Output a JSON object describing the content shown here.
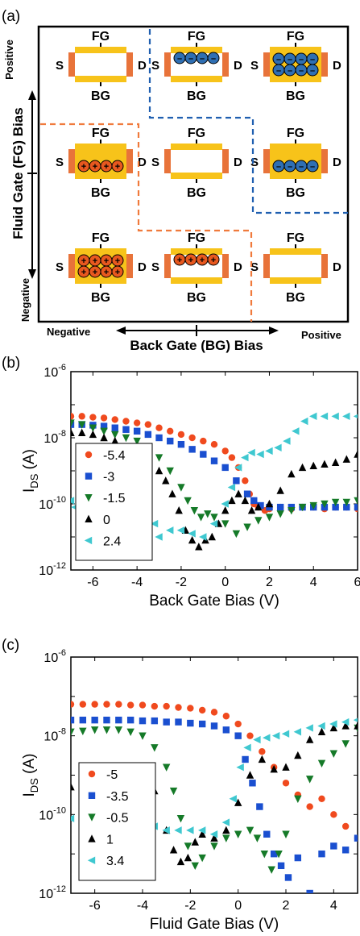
{
  "panel_a": {
    "letter": "(a)",
    "y_axis": {
      "title": "Fluid Gate (FG) Bias",
      "pos": "Positive",
      "neg": "Negative"
    },
    "x_axis": {
      "title": "Back Gate (BG) Bias",
      "neg": "Negative",
      "pos": "Positive"
    },
    "labels": {
      "fg": "FG",
      "bg": "BG",
      "s": "S",
      "d": "D"
    },
    "colors": {
      "gold": "#f7c31a",
      "contact": "#e8733a",
      "electron": "#2f6fb3",
      "hole": "#e8581f",
      "divider_blue": "#1f5fb0",
      "divider_orange": "#f07a3c"
    },
    "cells": [
      {
        "row": 0,
        "col": 0,
        "filled": false,
        "carrier": "none",
        "rows": 0
      },
      {
        "row": 0,
        "col": 1,
        "filled": false,
        "carrier": "electron",
        "rows": 1,
        "position": "top"
      },
      {
        "row": 0,
        "col": 2,
        "filled": true,
        "carrier": "electron",
        "rows": 2
      },
      {
        "row": 1,
        "col": 0,
        "filled": true,
        "carrier": "hole",
        "rows": 1,
        "position": "bottom"
      },
      {
        "row": 1,
        "col": 1,
        "filled": false,
        "carrier": "none",
        "rows": 0
      },
      {
        "row": 1,
        "col": 2,
        "filled": true,
        "carrier": "electron",
        "rows": 1,
        "position": "bottom"
      },
      {
        "row": 2,
        "col": 0,
        "filled": true,
        "carrier": "hole",
        "rows": 2
      },
      {
        "row": 2,
        "col": 1,
        "filled": false,
        "carrier": "hole",
        "rows": 1,
        "position": "top"
      },
      {
        "row": 2,
        "col": 2,
        "filled": false,
        "carrier": "none",
        "rows": 0
      }
    ]
  },
  "chart_data": [
    {
      "panel": "(b)",
      "type": "scatter",
      "xlabel": "Back Gate Bias (V)",
      "ylabel": "I_DS (A)",
      "xlim": [
        -7,
        6
      ],
      "ylim_log10": [
        -12,
        -6
      ],
      "xticks": [
        -6,
        -4,
        -2,
        0,
        2,
        4,
        6
      ],
      "ytick_labels": [
        "10-12",
        "10-10",
        "10-8",
        "10-6"
      ],
      "series": [
        {
          "name": "-5.4",
          "marker": "circle",
          "color": "#f04a1e",
          "x": [
            -7,
            -6.5,
            -6,
            -5.5,
            -5,
            -4.5,
            -4,
            -3.5,
            -3,
            -2.5,
            -2,
            -1.5,
            -1,
            -0.5,
            0,
            0.3,
            0.6,
            0.9,
            1.1,
            1.3,
            1.5,
            1.8,
            2,
            2.5,
            3,
            3.5,
            4,
            4.5,
            5,
            5.5,
            6
          ],
          "y_log10": [
            -7.35,
            -7.35,
            -7.38,
            -7.4,
            -7.45,
            -7.5,
            -7.55,
            -7.6,
            -7.7,
            -7.8,
            -7.9,
            -8.0,
            -8.1,
            -8.2,
            -8.4,
            -8.6,
            -8.9,
            -9.3,
            -9.7,
            -10.0,
            -10.1,
            -10.2,
            -10.15,
            -10.1,
            -10.15,
            -10.1,
            -10.1,
            -10.15,
            -10.1,
            -10.1,
            -10.15
          ]
        },
        {
          "name": "-3",
          "marker": "square",
          "color": "#1a4fd0",
          "x": [
            -7,
            -6.5,
            -6,
            -5.5,
            -5,
            -4.5,
            -4,
            -3.5,
            -3,
            -2.5,
            -2,
            -1.5,
            -1,
            -0.5,
            0,
            0.5,
            1,
            1.3,
            1.6,
            2,
            2.5,
            3,
            3.5,
            4,
            4.5,
            5,
            5.5,
            6
          ],
          "y_log10": [
            -7.6,
            -7.6,
            -7.62,
            -7.65,
            -7.7,
            -7.75,
            -7.8,
            -7.9,
            -8.0,
            -8.1,
            -8.2,
            -8.35,
            -8.5,
            -8.7,
            -8.9,
            -9.3,
            -9.7,
            -9.9,
            -10.05,
            -10.1,
            -10.1,
            -10.1,
            -10.1,
            -10.1,
            -10.1,
            -10.1,
            -10.1,
            -10.1
          ]
        },
        {
          "name": "-1.5",
          "marker": "triangle-down",
          "color": "#157a28",
          "x": [
            -7,
            -6.5,
            -6,
            -5.5,
            -5,
            -4.5,
            -4,
            -3.5,
            -3,
            -2.5,
            -2,
            -1.7,
            -1.4,
            -1.1,
            -0.8,
            -0.5,
            0,
            0.5,
            1,
            1.5,
            2,
            2.5,
            3,
            3.5,
            4,
            4.5,
            5,
            5.5,
            6
          ],
          "y_log10": [
            -7.55,
            -7.6,
            -7.7,
            -7.8,
            -7.9,
            -8.0,
            -8.1,
            -8.3,
            -8.6,
            -9.0,
            -9.5,
            -9.9,
            -10.2,
            -10.4,
            -10.3,
            -10.4,
            -10.6,
            -10.9,
            -10.7,
            -10.5,
            -10.4,
            -10.3,
            -10.2,
            -10.1,
            -10.05,
            -10.0,
            -9.95,
            -9.95,
            -9.9
          ]
        },
        {
          "name": "0",
          "marker": "triangle-up",
          "color": "#000000",
          "x": [
            -7,
            -6.5,
            -6,
            -5.5,
            -5,
            -4.5,
            -4,
            -3.5,
            -3,
            -2.7,
            -2.4,
            -2.1,
            -1.8,
            -1.5,
            -1.2,
            -0.9,
            -0.6,
            -0.3,
            0,
            0.3,
            0.6,
            0.9,
            1.2,
            1.5,
            2,
            2.5,
            3,
            3.5,
            4,
            4.5,
            5,
            5.5,
            6
          ],
          "y_log10": [
            -7.85,
            -7.85,
            -7.9,
            -8.0,
            -8.1,
            -8.3,
            -8.5,
            -8.7,
            -9.0,
            -9.3,
            -9.7,
            -10.2,
            -10.8,
            -11.1,
            -11.3,
            -11.1,
            -11.0,
            -10.6,
            -10.2,
            -9.9,
            -9.7,
            -9.9,
            -10.2,
            -10.1,
            -10.0,
            -9.6,
            -9.1,
            -8.9,
            -8.85,
            -8.8,
            -8.75,
            -8.65,
            -8.5
          ]
        },
        {
          "name": "2.4",
          "marker": "triangle-left",
          "color": "#3fc8d0",
          "x": [
            -7,
            -6.8,
            -6.5,
            -6.2,
            -6,
            -5.8,
            -5.5,
            -5.2,
            -5,
            -4.8,
            -4.5,
            -4.2,
            -4,
            -3.8,
            -3.5,
            -3.2,
            -3,
            -2.5,
            -2,
            -1.5,
            -1,
            -0.5,
            0,
            0.3,
            0.6,
            0.9,
            1.2,
            1.6,
            2,
            2.4,
            2.8,
            3.2,
            3.6,
            4,
            4.5,
            5,
            5.5,
            6
          ],
          "y_log10": [
            -9.9,
            -10.1,
            -10.4,
            -10.0,
            -10.8,
            -10.3,
            -10.6,
            -11.0,
            -10.4,
            -10.2,
            -11.3,
            -10.8,
            -10.9,
            -10.7,
            -11.2,
            -10.6,
            -11.0,
            -10.8,
            -10.8,
            -10.9,
            -11.0,
            -10.6,
            -10.0,
            -9.5,
            -8.9,
            -8.6,
            -8.45,
            -8.5,
            -8.4,
            -8.3,
            -8.1,
            -7.8,
            -7.5,
            -7.35,
            -7.35,
            -7.35,
            -7.35,
            -7.35
          ]
        }
      ]
    },
    {
      "panel": "(c)",
      "type": "scatter",
      "xlabel": "Fluid Gate Bias (V)",
      "ylabel": "I_DS (A)",
      "xlim": [
        -7,
        5
      ],
      "ylim_log10": [
        -12,
        -6
      ],
      "xticks": [
        -6,
        -4,
        -2,
        0,
        2,
        4
      ],
      "ytick_labels": [
        "10-12",
        "10-10",
        "10-8",
        "10-6"
      ],
      "series": [
        {
          "name": "-5",
          "marker": "circle",
          "color": "#f04a1e",
          "x": [
            -7,
            -6.5,
            -6,
            -5.5,
            -5,
            -4.5,
            -4,
            -3.5,
            -3,
            -2.5,
            -2,
            -1.5,
            -1,
            -0.5,
            0,
            0.5,
            1,
            1.5,
            2,
            2.5,
            3,
            3.5,
            4,
            4.5,
            5
          ],
          "y_log10": [
            -7.2,
            -7.2,
            -7.2,
            -7.2,
            -7.2,
            -7.22,
            -7.22,
            -7.25,
            -7.25,
            -7.28,
            -7.3,
            -7.35,
            -7.4,
            -7.5,
            -7.7,
            -8.0,
            -8.4,
            -8.8,
            -9.2,
            -9.5,
            -9.8,
            -9.6,
            -10.0,
            -10.3,
            -10.6
          ]
        },
        {
          "name": "-3.5",
          "marker": "square",
          "color": "#1a4fd0",
          "x": [
            -7,
            -6.5,
            -6,
            -5.5,
            -5,
            -4.5,
            -4,
            -3.5,
            -3,
            -2.5,
            -2,
            -1.5,
            -1,
            -0.5,
            0,
            0.3,
            0.6,
            0.9,
            1.2,
            1.5,
            1.8,
            2.1,
            2.5,
            3,
            3.5,
            4,
            4.5,
            5
          ],
          "y_log10": [
            -7.6,
            -7.6,
            -7.6,
            -7.6,
            -7.6,
            -7.6,
            -7.62,
            -7.62,
            -7.65,
            -7.65,
            -7.68,
            -7.7,
            -7.75,
            -7.85,
            -8.0,
            -8.6,
            -9.2,
            -9.8,
            -10.5,
            -11.0,
            -11.3,
            -11.6,
            -11.1,
            -12.0,
            -11.0,
            -10.8,
            -10.9,
            -10.6
          ]
        },
        {
          "name": "-0.5",
          "marker": "triangle-down",
          "color": "#157a28",
          "x": [
            -7,
            -6.5,
            -6,
            -5.5,
            -5,
            -4.5,
            -4,
            -3.5,
            -3,
            -2.7,
            -2.4,
            -2.1,
            -1.8,
            -1.5,
            -1,
            -0.5,
            0,
            0.5,
            0.8,
            1.1,
            1.4,
            1.7,
            2,
            2.5,
            3,
            3.5,
            4,
            4.5,
            5
          ],
          "y_log10": [
            -7.9,
            -7.88,
            -7.85,
            -7.85,
            -7.85,
            -7.9,
            -8.0,
            -8.3,
            -8.8,
            -9.4,
            -10.1,
            -10.8,
            -11.3,
            -11.1,
            -10.8,
            -10.6,
            -10.5,
            -10.4,
            -10.6,
            -11.0,
            -11.4,
            -11.0,
            -10.5,
            -9.6,
            -9.1,
            -8.7,
            -8.45,
            -8.2,
            -7.8
          ]
        },
        {
          "name": "1",
          "marker": "triangle-up",
          "color": "#000000",
          "x": [
            -7,
            -6.5,
            -6,
            -5.5,
            -5,
            -4.5,
            -4,
            -3.5,
            -3,
            -2.7,
            -2.4,
            -2.1,
            -1.8,
            -1.5,
            -1,
            -0.5,
            0,
            0.5,
            1,
            1.5,
            2,
            2.5,
            3,
            3.5,
            4,
            4.5,
            5
          ],
          "y_log10": [
            -9.3,
            -9.2,
            -9.1,
            -9.0,
            -8.9,
            -8.9,
            -9.0,
            -9.4,
            -10.4,
            -10.9,
            -11.2,
            -11.1,
            -10.7,
            -10.5,
            -10.6,
            -10.4,
            -9.7,
            -9.0,
            -8.6,
            -8.85,
            -8.8,
            -8.5,
            -8.1,
            -7.9,
            -7.8,
            -7.75,
            -7.75
          ]
        },
        {
          "name": "3.4",
          "marker": "triangle-left",
          "color": "#3fc8d0",
          "x": [
            -7,
            -6.5,
            -6,
            -5.5,
            -5,
            -4.5,
            -4,
            -3.5,
            -3,
            -2.5,
            -2,
            -1.5,
            -1,
            -0.5,
            -0.2,
            0.1,
            0.4,
            0.8,
            1.2,
            1.6,
            2,
            2.5,
            3,
            3.5,
            4,
            4.5,
            5
          ],
          "y_log10": [
            -10.1,
            -10.3,
            -10.4,
            -10.4,
            -10.4,
            -10.4,
            -10.4,
            -10.3,
            -10.4,
            -10.4,
            -10.4,
            -10.4,
            -10.5,
            -10.2,
            -9.6,
            -8.8,
            -8.3,
            -8.1,
            -8.05,
            -8.0,
            -7.95,
            -7.9,
            -7.8,
            -7.75,
            -7.7,
            -7.65,
            -7.6
          ]
        }
      ]
    }
  ]
}
